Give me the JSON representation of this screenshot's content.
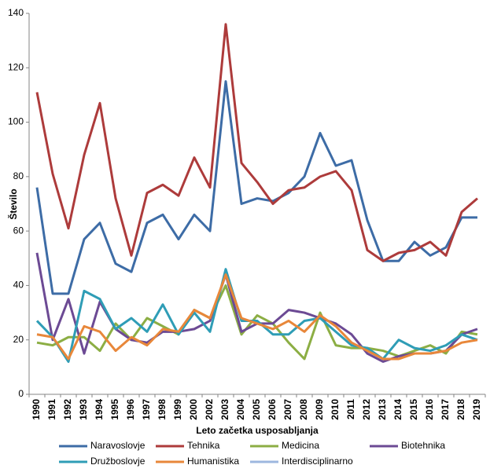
{
  "chart_data": {
    "type": "line",
    "x_label": "Leto začetka usposabljanja",
    "y_label": "Število",
    "categories": [
      "1990",
      "1991",
      "1992",
      "1993",
      "1994",
      "1995",
      "1996",
      "1997",
      "1998",
      "1999",
      "2000",
      "2002",
      "2003",
      "2004",
      "2005",
      "2006",
      "2007",
      "2008",
      "2009",
      "2010",
      "2011",
      "2012",
      "2013",
      "2014",
      "2015",
      "2016",
      "2017",
      "2018",
      "2019"
    ],
    "ylim": [
      0,
      140
    ],
    "yticks": [
      0,
      20,
      40,
      60,
      80,
      100,
      120,
      140
    ],
    "grid": false,
    "legend": "bottom",
    "series": [
      {
        "name": "Naravoslovje",
        "color": "#3d6ca6",
        "values": [
          76,
          37,
          37,
          57,
          63,
          48,
          45,
          63,
          66,
          57,
          66,
          60,
          115,
          70,
          72,
          71,
          74,
          80,
          96,
          84,
          86,
          64,
          49,
          49,
          56,
          51,
          54,
          65,
          65
        ]
      },
      {
        "name": "Tehnika",
        "color": "#ad3b3b",
        "values": [
          111,
          81,
          61,
          88,
          107,
          72,
          51,
          74,
          77,
          73,
          87,
          76,
          136,
          85,
          78,
          70,
          75,
          76,
          80,
          82,
          75,
          53,
          49,
          52,
          53,
          56,
          51,
          67,
          72
        ]
      },
      {
        "name": "Medicina",
        "color": "#8cae44",
        "values": [
          19,
          18,
          21,
          21,
          16,
          26,
          20,
          28,
          25,
          22,
          31,
          28,
          40,
          22,
          29,
          26,
          19,
          13,
          30,
          18,
          17,
          17,
          16,
          14,
          16,
          18,
          15,
          23,
          22
        ]
      },
      {
        "name": "Biotehnika",
        "color": "#6c4a94",
        "values": [
          52,
          20,
          35,
          15,
          34,
          24,
          20,
          19,
          23,
          23,
          24,
          27,
          44,
          23,
          26,
          26,
          31,
          30,
          28,
          26,
          22,
          15,
          12,
          14,
          15,
          15,
          16,
          22,
          24
        ]
      },
      {
        "name": "Družboslovje",
        "color": "#2f9db6",
        "values": [
          27,
          21,
          12,
          38,
          35,
          24,
          28,
          23,
          33,
          22,
          30,
          23,
          46,
          27,
          27,
          22,
          22,
          27,
          28,
          23,
          18,
          17,
          13,
          20,
          17,
          16,
          18,
          22,
          20
        ]
      },
      {
        "name": "Humanistika",
        "color": "#e8873a",
        "values": [
          22,
          21,
          13,
          25,
          23,
          16,
          21,
          18,
          24,
          23,
          31,
          28,
          44,
          28,
          26,
          24,
          27,
          23,
          29,
          25,
          19,
          16,
          13,
          13,
          15,
          15,
          16,
          19,
          20
        ]
      },
      {
        "name": "Interdisciplinarno",
        "color": "#9db7df",
        "values": [
          null,
          null,
          null,
          null,
          null,
          null,
          null,
          null,
          null,
          null,
          null,
          null,
          null,
          null,
          null,
          null,
          null,
          null,
          null,
          null,
          null,
          null,
          null,
          null,
          null,
          null,
          null,
          null,
          null
        ]
      }
    ]
  }
}
